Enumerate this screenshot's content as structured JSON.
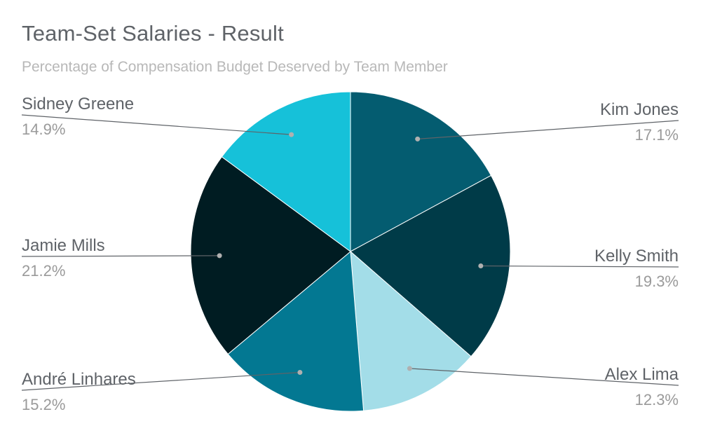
{
  "chart_data": {
    "type": "pie",
    "title": "Team-Set Salaries - Result",
    "subtitle": "Percentage of Compensation Budget Deserved by Team Member",
    "slices": [
      {
        "name": "Kim Jones",
        "value": 17.1,
        "label": "17.1%",
        "color": "#045c70"
      },
      {
        "name": "Kelly Smith",
        "value": 19.3,
        "label": "19.3%",
        "color": "#003b48"
      },
      {
        "name": "Alex Lima",
        "value": 12.3,
        "label": "12.3%",
        "color": "#a3dde8"
      },
      {
        "name": "André Linhares",
        "value": 15.2,
        "label": "15.2%",
        "color": "#037892"
      },
      {
        "name": "Jamie Mills",
        "value": 21.2,
        "label": "21.2%",
        "color": "#001c22"
      },
      {
        "name": "Sidney Greene",
        "value": 14.9,
        "label": "14.9%",
        "color": "#16c1d9"
      }
    ],
    "legend": "none",
    "label_position": "outside-with-leaders"
  }
}
